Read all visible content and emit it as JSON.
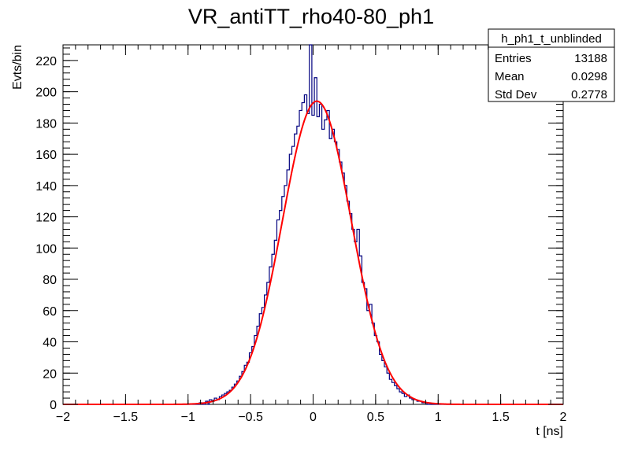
{
  "chart_data": {
    "type": "histogram",
    "title": "VR_antiTT_rho40-80_ph1",
    "xlabel": "t [ns]",
    "ylabel": "Evts/bin",
    "xlim": [
      -2,
      2
    ],
    "ylim": [
      0,
      230
    ],
    "x_ticks": [
      -2,
      -1.5,
      -1,
      -0.5,
      0,
      0.5,
      1,
      1.5,
      2
    ],
    "x_tick_labels": [
      "−2",
      "−1.5",
      "−1",
      "−0.5",
      "0",
      "0.5",
      "1",
      "1.5",
      "2"
    ],
    "y_ticks": [
      0,
      20,
      40,
      60,
      80,
      100,
      120,
      140,
      160,
      180,
      200,
      220
    ],
    "y_tick_labels": [
      "0",
      "20",
      "40",
      "60",
      "80",
      "100",
      "120",
      "140",
      "160",
      "180",
      "200",
      "220"
    ],
    "grid": false,
    "histogram": {
      "color": "#00007f",
      "bin_width": 0.01,
      "bins": [
        {
          "x": -0.9,
          "y": 1
        },
        {
          "x": -0.85,
          "y": 2
        },
        {
          "x": -0.82,
          "y": 3
        },
        {
          "x": -0.8,
          "y": 2
        },
        {
          "x": -0.78,
          "y": 4
        },
        {
          "x": -0.76,
          "y": 3
        },
        {
          "x": -0.74,
          "y": 5
        },
        {
          "x": -0.72,
          "y": 6
        },
        {
          "x": -0.7,
          "y": 7
        },
        {
          "x": -0.68,
          "y": 8
        },
        {
          "x": -0.66,
          "y": 9
        },
        {
          "x": -0.64,
          "y": 11
        },
        {
          "x": -0.62,
          "y": 13
        },
        {
          "x": -0.6,
          "y": 15
        },
        {
          "x": -0.58,
          "y": 18
        },
        {
          "x": -0.56,
          "y": 21
        },
        {
          "x": -0.54,
          "y": 25
        },
        {
          "x": -0.52,
          "y": 27
        },
        {
          "x": -0.5,
          "y": 33
        },
        {
          "x": -0.48,
          "y": 37
        },
        {
          "x": -0.46,
          "y": 44
        },
        {
          "x": -0.44,
          "y": 50
        },
        {
          "x": -0.42,
          "y": 58
        },
        {
          "x": -0.4,
          "y": 62
        },
        {
          "x": -0.38,
          "y": 70
        },
        {
          "x": -0.36,
          "y": 78
        },
        {
          "x": -0.34,
          "y": 88
        },
        {
          "x": -0.32,
          "y": 96
        },
        {
          "x": -0.3,
          "y": 105
        },
        {
          "x": -0.28,
          "y": 118
        },
        {
          "x": -0.26,
          "y": 124
        },
        {
          "x": -0.24,
          "y": 133
        },
        {
          "x": -0.22,
          "y": 140
        },
        {
          "x": -0.2,
          "y": 150
        },
        {
          "x": -0.18,
          "y": 160
        },
        {
          "x": -0.16,
          "y": 165
        },
        {
          "x": -0.14,
          "y": 173
        },
        {
          "x": -0.12,
          "y": 178
        },
        {
          "x": -0.1,
          "y": 188
        },
        {
          "x": -0.08,
          "y": 193
        },
        {
          "x": -0.06,
          "y": 198
        },
        {
          "x": -0.04,
          "y": 186
        },
        {
          "x": -0.02,
          "y": 230
        },
        {
          "x": 0.0,
          "y": 185
        },
        {
          "x": 0.02,
          "y": 209
        },
        {
          "x": 0.04,
          "y": 184
        },
        {
          "x": 0.06,
          "y": 192
        },
        {
          "x": 0.08,
          "y": 176
        },
        {
          "x": 0.1,
          "y": 182
        },
        {
          "x": 0.12,
          "y": 188
        },
        {
          "x": 0.14,
          "y": 170
        },
        {
          "x": 0.16,
          "y": 176
        },
        {
          "x": 0.18,
          "y": 168
        },
        {
          "x": 0.2,
          "y": 163
        },
        {
          "x": 0.22,
          "y": 155
        },
        {
          "x": 0.24,
          "y": 148
        },
        {
          "x": 0.26,
          "y": 140
        },
        {
          "x": 0.28,
          "y": 130
        },
        {
          "x": 0.3,
          "y": 122
        },
        {
          "x": 0.32,
          "y": 112
        },
        {
          "x": 0.34,
          "y": 104
        },
        {
          "x": 0.36,
          "y": 112
        },
        {
          "x": 0.38,
          "y": 95
        },
        {
          "x": 0.4,
          "y": 78
        },
        {
          "x": 0.42,
          "y": 74
        },
        {
          "x": 0.44,
          "y": 60
        },
        {
          "x": 0.46,
          "y": 64
        },
        {
          "x": 0.48,
          "y": 52
        },
        {
          "x": 0.5,
          "y": 44
        },
        {
          "x": 0.52,
          "y": 40
        },
        {
          "x": 0.54,
          "y": 32
        },
        {
          "x": 0.56,
          "y": 28
        },
        {
          "x": 0.58,
          "y": 24
        },
        {
          "x": 0.6,
          "y": 20
        },
        {
          "x": 0.62,
          "y": 16
        },
        {
          "x": 0.64,
          "y": 14
        },
        {
          "x": 0.66,
          "y": 12
        },
        {
          "x": 0.68,
          "y": 10
        },
        {
          "x": 0.7,
          "y": 8
        },
        {
          "x": 0.72,
          "y": 7
        },
        {
          "x": 0.74,
          "y": 5
        },
        {
          "x": 0.76,
          "y": 6
        },
        {
          "x": 0.78,
          "y": 4
        },
        {
          "x": 0.8,
          "y": 3
        },
        {
          "x": 0.82,
          "y": 3
        },
        {
          "x": 0.84,
          "y": 2
        },
        {
          "x": 0.86,
          "y": 2
        },
        {
          "x": 0.88,
          "y": 1
        },
        {
          "x": 0.9,
          "y": 1
        }
      ]
    },
    "fit": {
      "type": "gaussian",
      "color": "#ff0000",
      "amplitude": 194,
      "mean": 0.03,
      "sigma": 0.275
    },
    "stats_box": {
      "title": "h_ph1_t_unblinded",
      "rows": [
        {
          "label": "Entries",
          "value": "13188"
        },
        {
          "label": "Mean",
          "value": "0.0298"
        },
        {
          "label": "Std Dev",
          "value": "0.2778"
        }
      ],
      "placement": "top-right"
    }
  }
}
